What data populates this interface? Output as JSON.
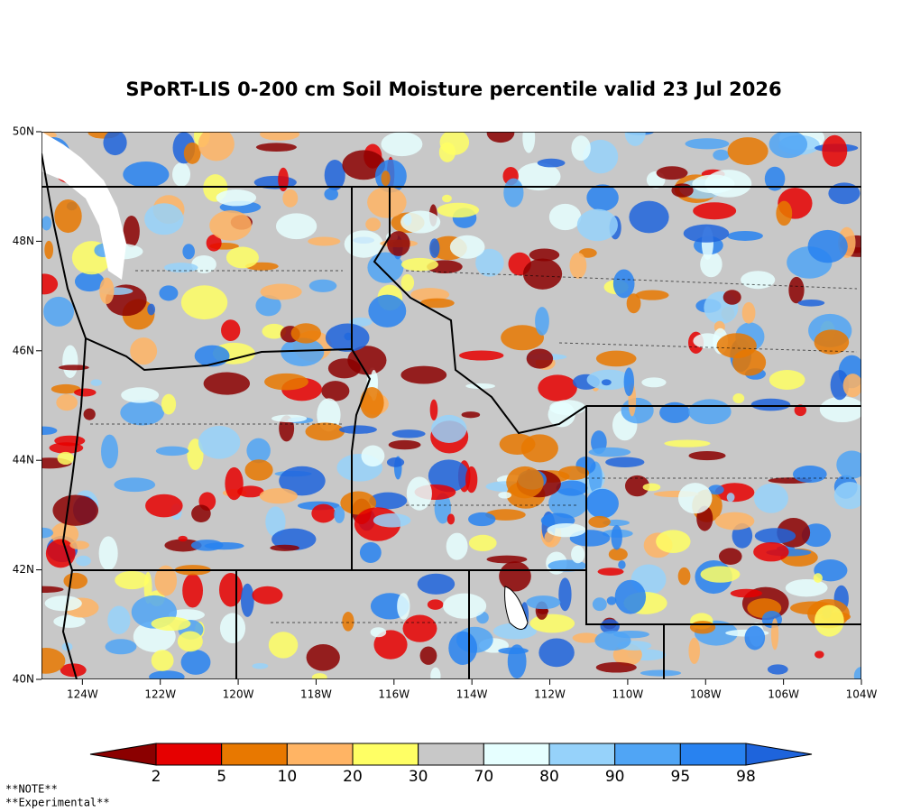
{
  "header": {
    "title": "SPoRT-LIS 0-200 cm Soil Moisture percentile valid 23 Jul 2026"
  },
  "map": {
    "lon_range": [
      -125.05,
      -104
    ],
    "lat_range": [
      40,
      50
    ],
    "lon_ticks": [
      {
        "value": -124,
        "label": "124W"
      },
      {
        "value": -122,
        "label": "122W"
      },
      {
        "value": -120,
        "label": "120W"
      },
      {
        "value": -118,
        "label": "118W"
      },
      {
        "value": -116,
        "label": "116W"
      },
      {
        "value": -114,
        "label": "114W"
      },
      {
        "value": -112,
        "label": "112W"
      },
      {
        "value": -110,
        "label": "110W"
      },
      {
        "value": -108,
        "label": "108W"
      },
      {
        "value": -106,
        "label": "106W"
      },
      {
        "value": -104,
        "label": "104W"
      }
    ],
    "lat_ticks": [
      {
        "value": 40,
        "label": "40N"
      },
      {
        "value": 42,
        "label": "42N"
      },
      {
        "value": 44,
        "label": "44N"
      },
      {
        "value": 46,
        "label": "46N"
      },
      {
        "value": 48,
        "label": "48N"
      },
      {
        "value": 50,
        "label": "50N"
      }
    ]
  },
  "colorbar": {
    "labels": [
      2,
      5,
      10,
      20,
      30,
      70,
      80,
      90,
      95,
      98
    ],
    "colors": [
      "#8b0000",
      "#e60000",
      "#e87800",
      "#ffb464",
      "#ffff64",
      "#c8c8c8",
      "#e6ffff",
      "#96d2fa",
      "#50a5f5",
      "#2882f0",
      "#1e64dc"
    ]
  },
  "notes": [
    "**NOTE**",
    "**Experimental**"
  ]
}
